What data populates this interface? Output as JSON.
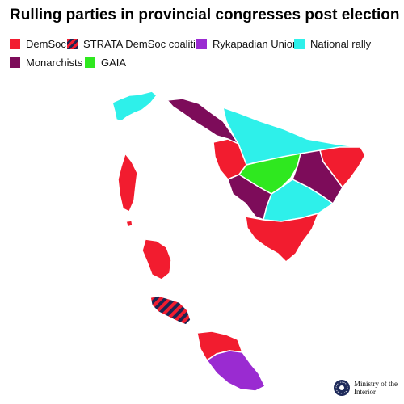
{
  "title": "Rulling parties in provincial congresses post election",
  "legend": [
    {
      "label": "DemSoc",
      "color": "#f21c2f"
    },
    {
      "label": "STRATA DemSoc coalition",
      "color": "#f21c2f",
      "stripe": "#1e2452"
    },
    {
      "label": "Rykapadian Union",
      "color": "#9a2bd1"
    },
    {
      "label": "National rally",
      "color": "#2ef0ea"
    },
    {
      "label": "Monarchists",
      "color": "#7d0c5a"
    },
    {
      "label": "GAIA",
      "color": "#2fe81f"
    }
  ],
  "credit": {
    "line1": "Ministry of the",
    "line2": "Interior",
    "icon": "ministry-seal-icon"
  },
  "border_color": "#ffffff"
}
